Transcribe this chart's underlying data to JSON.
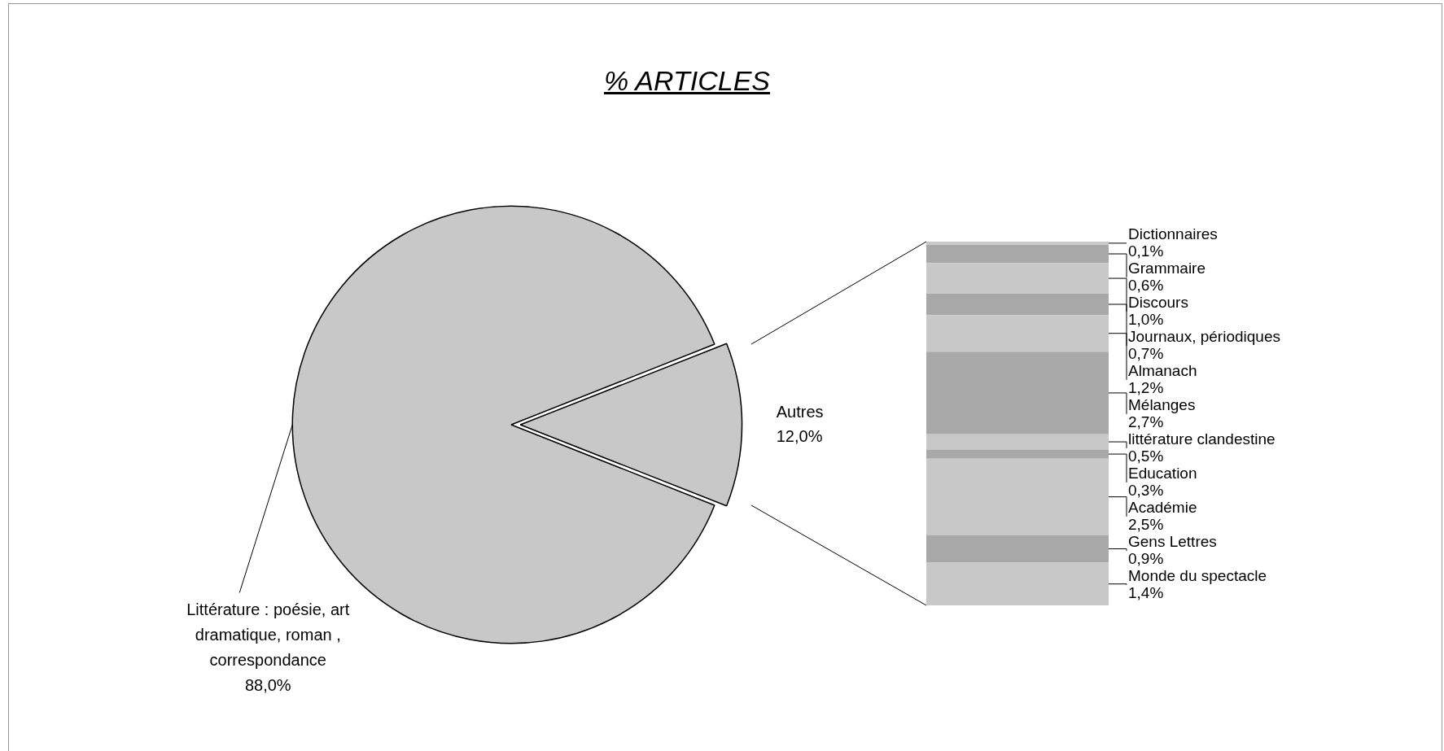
{
  "chart_data": [
    {
      "type": "pie",
      "title": "% ARTICLES",
      "categories": [
        "Littérature : poésie, art dramatique, roman , correspondance",
        "Autres"
      ],
      "values": [
        88.0,
        12.0
      ],
      "value_labels": [
        "88,0%",
        "12,0%"
      ],
      "colors": [
        "#c8c8c8",
        "#c8c8c8"
      ],
      "legend": false
    },
    {
      "type": "bar",
      "stacked": true,
      "categories": [
        null
      ],
      "legend": false,
      "series": [
        {
          "name": "Monde du spectacle",
          "color": "#c8c8c8",
          "values": [
            1.4
          ],
          "value_labels": [
            "1,4%"
          ]
        },
        {
          "name": "Gens Lettres",
          "color": "#a8a8a8",
          "values": [
            0.9
          ],
          "value_labels": [
            "0,9%"
          ]
        },
        {
          "name": "Académie",
          "color": "#c8c8c8",
          "values": [
            2.5
          ],
          "value_labels": [
            "2,5%"
          ]
        },
        {
          "name": "Education",
          "color": "#a8a8a8",
          "values": [
            0.3
          ],
          "value_labels": [
            "0,3%"
          ]
        },
        {
          "name": "littérature clandestine",
          "color": "#c8c8c8",
          "values": [
            0.5
          ],
          "value_labels": [
            "0,5%"
          ]
        },
        {
          "name": "Mélanges",
          "color": "#a8a8a8",
          "values": [
            2.7
          ],
          "value_labels": [
            "2,7%"
          ]
        },
        {
          "name": "Almanach",
          "color": "#c8c8c8",
          "values": [
            1.2
          ],
          "value_labels": [
            "1,2%"
          ]
        },
        {
          "name": "Journaux, périodiques",
          "color": "#a8a8a8",
          "values": [
            0.7
          ],
          "value_labels": [
            "0,7%"
          ]
        },
        {
          "name": "Discours",
          "color": "#c8c8c8",
          "values": [
            1.0
          ],
          "value_labels": [
            "1,0%"
          ]
        },
        {
          "name": "Grammaire",
          "color": "#a8a8a8",
          "values": [
            0.6
          ],
          "value_labels": [
            "0,6%"
          ]
        },
        {
          "name": "Dictionnaires",
          "color": "#c8c8c8",
          "values": [
            0.1
          ],
          "value_labels": [
            "0,1%"
          ]
        }
      ]
    }
  ]
}
